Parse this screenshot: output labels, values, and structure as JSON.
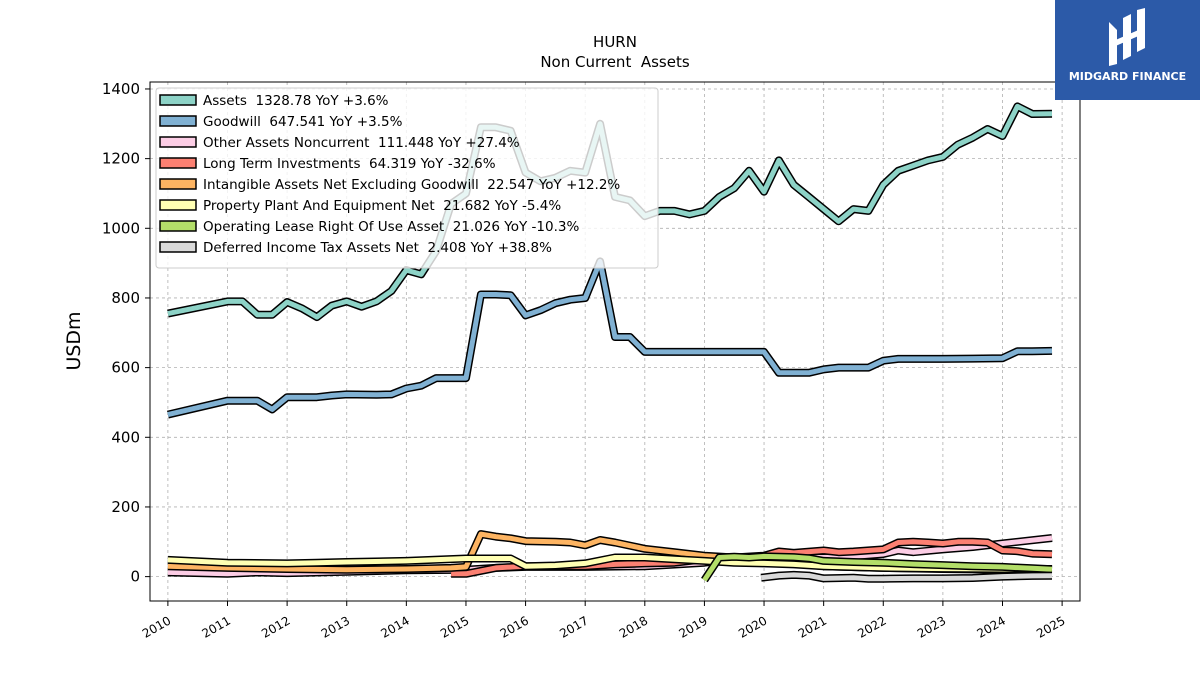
{
  "brand": {
    "name": "MIDGARD FINANCE",
    "bg": "#2c5aa8",
    "icon": "midgard-logo-icon"
  },
  "chart_data": {
    "type": "line",
    "title": "HURN",
    "subtitle": "Non Current  Assets",
    "ylabel": "USDm",
    "xlabel": "",
    "xlim": [
      2009.7,
      2025.3
    ],
    "ylim": [
      -70,
      1420
    ],
    "xticks": [
      "2010",
      "2011",
      "2012",
      "2013",
      "2014",
      "2015",
      "2016",
      "2017",
      "2018",
      "2019",
      "2020",
      "2021",
      "2022",
      "2023",
      "2024",
      "2025"
    ],
    "yticks": [
      "0",
      "200",
      "400",
      "600",
      "800",
      "1000",
      "1200",
      "1400"
    ],
    "grid": true,
    "legend_position": "top-left",
    "series": [
      {
        "name": "Assets",
        "legend": "Assets  1328.78 YoY +3.6%",
        "color": "#8dd3c7",
        "points": [
          [
            2010.0,
            755
          ],
          [
            2011.0,
            790
          ],
          [
            2011.25,
            790
          ],
          [
            2011.5,
            752
          ],
          [
            2011.75,
            752
          ],
          [
            2012.0,
            788
          ],
          [
            2012.25,
            770
          ],
          [
            2012.5,
            745
          ],
          [
            2012.75,
            778
          ],
          [
            2013.0,
            790
          ],
          [
            2013.25,
            775
          ],
          [
            2013.5,
            790
          ],
          [
            2013.75,
            820
          ],
          [
            2014.0,
            880
          ],
          [
            2014.25,
            868
          ],
          [
            2014.5,
            935
          ],
          [
            2014.75,
            1070
          ],
          [
            2015.0,
            1100
          ],
          [
            2015.25,
            1290
          ],
          [
            2015.5,
            1290
          ],
          [
            2015.75,
            1280
          ],
          [
            2016.0,
            1160
          ],
          [
            2016.25,
            1135
          ],
          [
            2016.5,
            1145
          ],
          [
            2016.75,
            1165
          ],
          [
            2017.0,
            1160
          ],
          [
            2017.25,
            1300
          ],
          [
            2017.5,
            1090
          ],
          [
            2017.75,
            1080
          ],
          [
            2018.0,
            1035
          ],
          [
            2018.25,
            1050
          ],
          [
            2018.5,
            1050
          ],
          [
            2018.75,
            1040
          ],
          [
            2019.0,
            1050
          ],
          [
            2019.25,
            1090
          ],
          [
            2019.5,
            1115
          ],
          [
            2019.75,
            1165
          ],
          [
            2020.0,
            1105
          ],
          [
            2020.25,
            1195
          ],
          [
            2020.5,
            1125
          ],
          [
            2020.75,
            1090
          ],
          [
            2021.0,
            1055
          ],
          [
            2021.25,
            1020
          ],
          [
            2021.5,
            1055
          ],
          [
            2021.75,
            1050
          ],
          [
            2022.0,
            1125
          ],
          [
            2022.25,
            1165
          ],
          [
            2022.5,
            1180
          ],
          [
            2022.75,
            1195
          ],
          [
            2023.0,
            1205
          ],
          [
            2023.25,
            1240
          ],
          [
            2023.5,
            1260
          ],
          [
            2023.75,
            1285
          ],
          [
            2024.0,
            1265
          ],
          [
            2024.25,
            1350
          ],
          [
            2024.5,
            1328
          ],
          [
            2024.83,
            1329
          ]
        ]
      },
      {
        "name": "Goodwill",
        "legend": "Goodwill  647.541 YoY +3.5%",
        "color": "#80b1d3",
        "points": [
          [
            2010.0,
            465
          ],
          [
            2011.0,
            505
          ],
          [
            2011.5,
            505
          ],
          [
            2011.75,
            480
          ],
          [
            2012.0,
            515
          ],
          [
            2012.5,
            515
          ],
          [
            2012.75,
            520
          ],
          [
            2013.0,
            523
          ],
          [
            2013.5,
            522
          ],
          [
            2013.75,
            523
          ],
          [
            2014.0,
            540
          ],
          [
            2014.25,
            548
          ],
          [
            2014.5,
            570
          ],
          [
            2014.75,
            570
          ],
          [
            2015.0,
            570
          ],
          [
            2015.25,
            810
          ],
          [
            2015.5,
            810
          ],
          [
            2015.75,
            808
          ],
          [
            2016.0,
            750
          ],
          [
            2016.25,
            765
          ],
          [
            2016.5,
            785
          ],
          [
            2016.75,
            795
          ],
          [
            2017.0,
            800
          ],
          [
            2017.25,
            905
          ],
          [
            2017.5,
            688
          ],
          [
            2017.75,
            688
          ],
          [
            2018.0,
            645
          ],
          [
            2018.5,
            645
          ],
          [
            2019.0,
            645
          ],
          [
            2019.5,
            645
          ],
          [
            2020.0,
            645
          ],
          [
            2020.25,
            585
          ],
          [
            2020.5,
            585
          ],
          [
            2020.75,
            585
          ],
          [
            2021.0,
            595
          ],
          [
            2021.25,
            600
          ],
          [
            2021.5,
            600
          ],
          [
            2021.75,
            600
          ],
          [
            2022.0,
            620
          ],
          [
            2022.25,
            625
          ],
          [
            2022.5,
            625
          ],
          [
            2022.75,
            625
          ],
          [
            2023.0,
            625
          ],
          [
            2023.5,
            626
          ],
          [
            2024.0,
            627
          ],
          [
            2024.25,
            647
          ],
          [
            2024.5,
            647
          ],
          [
            2024.83,
            648
          ]
        ]
      },
      {
        "name": "Other Assets Noncurrent",
        "legend": "Other Assets Noncurrent  111.448 YoY +27.4%",
        "color": "#fccde5",
        "points": [
          [
            2010.0,
            12
          ],
          [
            2011.0,
            8
          ],
          [
            2011.5,
            12
          ],
          [
            2012.0,
            10
          ],
          [
            2013.0,
            14
          ],
          [
            2014.0,
            18
          ],
          [
            2015.0,
            20
          ],
          [
            2015.5,
            25
          ],
          [
            2016.0,
            28
          ],
          [
            2017.0,
            28
          ],
          [
            2018.0,
            30
          ],
          [
            2019.0,
            40
          ],
          [
            2019.5,
            50
          ],
          [
            2020.0,
            55
          ],
          [
            2020.5,
            55
          ],
          [
            2021.0,
            55
          ],
          [
            2021.5,
            58
          ],
          [
            2022.0,
            65
          ],
          [
            2022.25,
            75
          ],
          [
            2022.5,
            70
          ],
          [
            2022.75,
            74
          ],
          [
            2023.0,
            78
          ],
          [
            2023.5,
            85
          ],
          [
            2024.0,
            95
          ],
          [
            2024.83,
            111
          ]
        ]
      },
      {
        "name": "Long Term Investments",
        "legend": "Long Term Investments  64.319 YoY -32.6%",
        "color": "#fb8072",
        "points": [
          [
            2014.75,
            8
          ],
          [
            2015.0,
            8
          ],
          [
            2015.5,
            25
          ],
          [
            2016.0,
            30
          ],
          [
            2017.0,
            30
          ],
          [
            2017.5,
            35
          ],
          [
            2018.0,
            38
          ],
          [
            2018.5,
            40
          ],
          [
            2019.0,
            50
          ],
          [
            2019.5,
            55
          ],
          [
            2020.0,
            60
          ],
          [
            2020.25,
            72
          ],
          [
            2020.5,
            68
          ],
          [
            2021.0,
            75
          ],
          [
            2021.25,
            70
          ],
          [
            2021.5,
            72
          ],
          [
            2022.0,
            78
          ],
          [
            2022.25,
            98
          ],
          [
            2022.5,
            100
          ],
          [
            2022.75,
            98
          ],
          [
            2023.0,
            95
          ],
          [
            2023.25,
            100
          ],
          [
            2023.5,
            100
          ],
          [
            2023.75,
            98
          ],
          [
            2024.0,
            75
          ],
          [
            2024.25,
            73
          ],
          [
            2024.5,
            66
          ],
          [
            2024.83,
            64
          ]
        ]
      },
      {
        "name": "Intangible Assets Net Excluding Goodwill",
        "legend": "Intangible Assets Net Excluding Goodwill  22.547 YoY +12.2%",
        "color": "#fdb462",
        "points": [
          [
            2010.0,
            30
          ],
          [
            2011.0,
            25
          ],
          [
            2012.0,
            22
          ],
          [
            2013.0,
            20
          ],
          [
            2014.0,
            22
          ],
          [
            2014.75,
            25
          ],
          [
            2015.0,
            28
          ],
          [
            2015.25,
            122
          ],
          [
            2015.5,
            115
          ],
          [
            2015.75,
            110
          ],
          [
            2016.0,
            102
          ],
          [
            2016.5,
            100
          ],
          [
            2016.75,
            98
          ],
          [
            2017.0,
            90
          ],
          [
            2017.25,
            105
          ],
          [
            2017.5,
            98
          ],
          [
            2018.0,
            80
          ],
          [
            2018.5,
            70
          ],
          [
            2019.0,
            60
          ],
          [
            2019.5,
            55
          ],
          [
            2020.0,
            45
          ],
          [
            2020.5,
            38
          ],
          [
            2021.0,
            30
          ],
          [
            2022.0,
            25
          ],
          [
            2023.0,
            22
          ],
          [
            2024.0,
            20
          ],
          [
            2024.83,
            22
          ]
        ]
      },
      {
        "name": "Property Plant And Equipment Net",
        "legend": "Property Plant And Equipment Net  21.682 YoY -5.4%",
        "color": "#ffffb3",
        "points": [
          [
            2010.0,
            48
          ],
          [
            2011.0,
            40
          ],
          [
            2012.0,
            38
          ],
          [
            2012.5,
            40
          ],
          [
            2013.0,
            42
          ],
          [
            2014.0,
            45
          ],
          [
            2015.0,
            52
          ],
          [
            2015.75,
            52
          ],
          [
            2016.0,
            30
          ],
          [
            2016.5,
            32
          ],
          [
            2017.0,
            38
          ],
          [
            2017.5,
            55
          ],
          [
            2018.0,
            55
          ],
          [
            2018.5,
            50
          ],
          [
            2019.0,
            45
          ],
          [
            2019.5,
            40
          ],
          [
            2020.0,
            38
          ],
          [
            2020.5,
            35
          ],
          [
            2021.0,
            30
          ],
          [
            2022.0,
            25
          ],
          [
            2023.0,
            23
          ],
          [
            2024.0,
            22
          ],
          [
            2024.83,
            22
          ]
        ]
      },
      {
        "name": "Operating Lease Right Of Use Asset",
        "legend": "Operating Lease Right Of Use Asset  21.026 YoY -10.3%",
        "color": "#b3de69",
        "points": [
          [
            2019.0,
            -10
          ],
          [
            2019.25,
            55
          ],
          [
            2019.5,
            57
          ],
          [
            2019.75,
            55
          ],
          [
            2020.0,
            58
          ],
          [
            2020.5,
            56
          ],
          [
            2020.75,
            53
          ],
          [
            2021.0,
            45
          ],
          [
            2021.5,
            42
          ],
          [
            2022.0,
            40
          ],
          [
            2022.5,
            36
          ],
          [
            2023.0,
            33
          ],
          [
            2023.5,
            30
          ],
          [
            2024.0,
            28
          ],
          [
            2024.5,
            24
          ],
          [
            2024.83,
            21
          ]
        ]
      },
      {
        "name": "Deferred Income Tax Assets Net",
        "legend": "Deferred Income Tax Assets Net  2.408 YoY +38.8%",
        "color": "#d9d9d9",
        "points": [
          [
            2019.95,
            -3
          ],
          [
            2020.25,
            3
          ],
          [
            2020.5,
            5
          ],
          [
            2020.75,
            3
          ],
          [
            2021.0,
            -5
          ],
          [
            2021.5,
            -3
          ],
          [
            2021.75,
            -6
          ],
          [
            2022.0,
            -6
          ],
          [
            2022.5,
            -5
          ],
          [
            2023.0,
            -5
          ],
          [
            2023.5,
            -4
          ],
          [
            2024.0,
            0
          ],
          [
            2024.5,
            2
          ],
          [
            2024.83,
            2.4
          ]
        ]
      }
    ]
  }
}
